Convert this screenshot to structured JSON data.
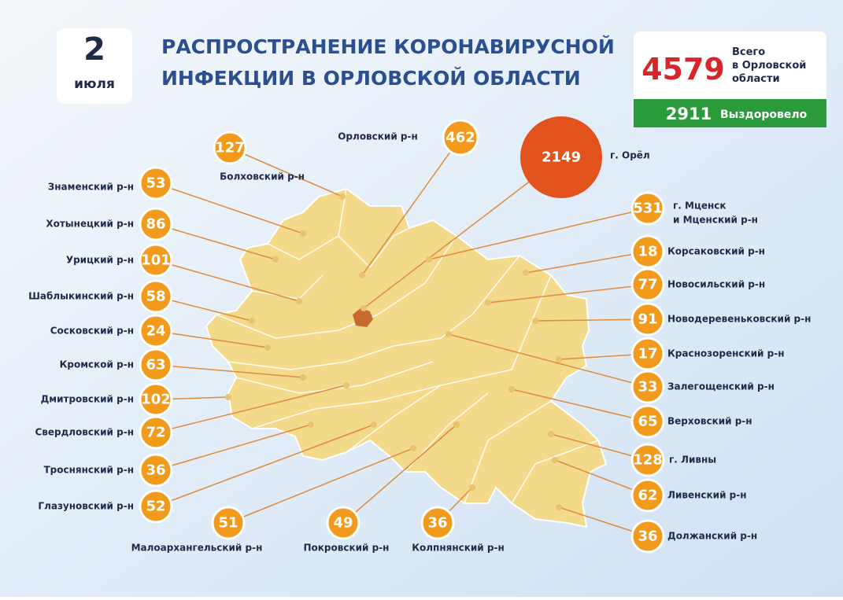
{
  "header": {
    "day": "2",
    "month": "июля",
    "title": [
      "РАСПРОСТРАНЕНИЕ КОРОНАВИРУСНОЙ",
      "ИНФЕКЦИИ В ОРЛОВСКОЙ ОБЛАСТИ"
    ]
  },
  "total": {
    "count": "4579",
    "caption": [
      "Всего",
      "в Орловской",
      "области"
    ],
    "recovered": "2911",
    "recovered_label": "Выздоровело"
  },
  "districts": [
    {
      "label": [
        "Знаменский р-н"
      ],
      "count": "53"
    },
    {
      "label": [
        "Хотынецкий р-н"
      ],
      "count": "86"
    },
    {
      "label": [
        "Урицкий р-н"
      ],
      "count": "101"
    },
    {
      "label": [
        "Шаблыкинский р-н"
      ],
      "count": "58"
    },
    {
      "label": [
        "Сосковский р-н"
      ],
      "count": "24"
    },
    {
      "label": [
        "Кромской р-н"
      ],
      "count": "63"
    },
    {
      "label": [
        "Дмитровский р-н"
      ],
      "count": "102"
    },
    {
      "label": [
        "Свердловский р-н"
      ],
      "count": "72"
    },
    {
      "label": [
        "Троснянский р-н"
      ],
      "count": "36"
    },
    {
      "label": [
        "Глазуновский р-н"
      ],
      "count": "52"
    },
    {
      "label": [
        "Малоархангельский р-н"
      ],
      "count": "51"
    },
    {
      "label": [
        "Покровский р-н"
      ],
      "count": "49"
    },
    {
      "label": [
        "Колпнянский р-н"
      ],
      "count": "36"
    },
    {
      "label": [
        "Болховский р-н"
      ],
      "count": "127"
    },
    {
      "label": [
        "Орловский р-н"
      ],
      "count": "462"
    },
    {
      "label": [
        "г. Орёл"
      ],
      "count": "2149"
    },
    {
      "label": [
        "г. Мценск",
        "и Мценский р-н"
      ],
      "count": "531"
    },
    {
      "label": [
        "Корсаковский р-н"
      ],
      "count": "18"
    },
    {
      "label": [
        "Новосильский р-н"
      ],
      "count": "77"
    },
    {
      "label": [
        "Новодеревеньковский р-н"
      ],
      "count": "91"
    },
    {
      "label": [
        "Краснозоренский р-н"
      ],
      "count": "17"
    },
    {
      "label": [
        "Залегощенский р-н"
      ],
      "count": "33"
    },
    {
      "label": [
        "Верховский р-н"
      ],
      "count": "65"
    },
    {
      "label": [
        "г. Ливны"
      ],
      "count": "128"
    },
    {
      "label": [
        "Ливенский р-н"
      ],
      "count": "62"
    },
    {
      "label": [
        "Должанский р-н"
      ],
      "count": "36"
    }
  ]
}
